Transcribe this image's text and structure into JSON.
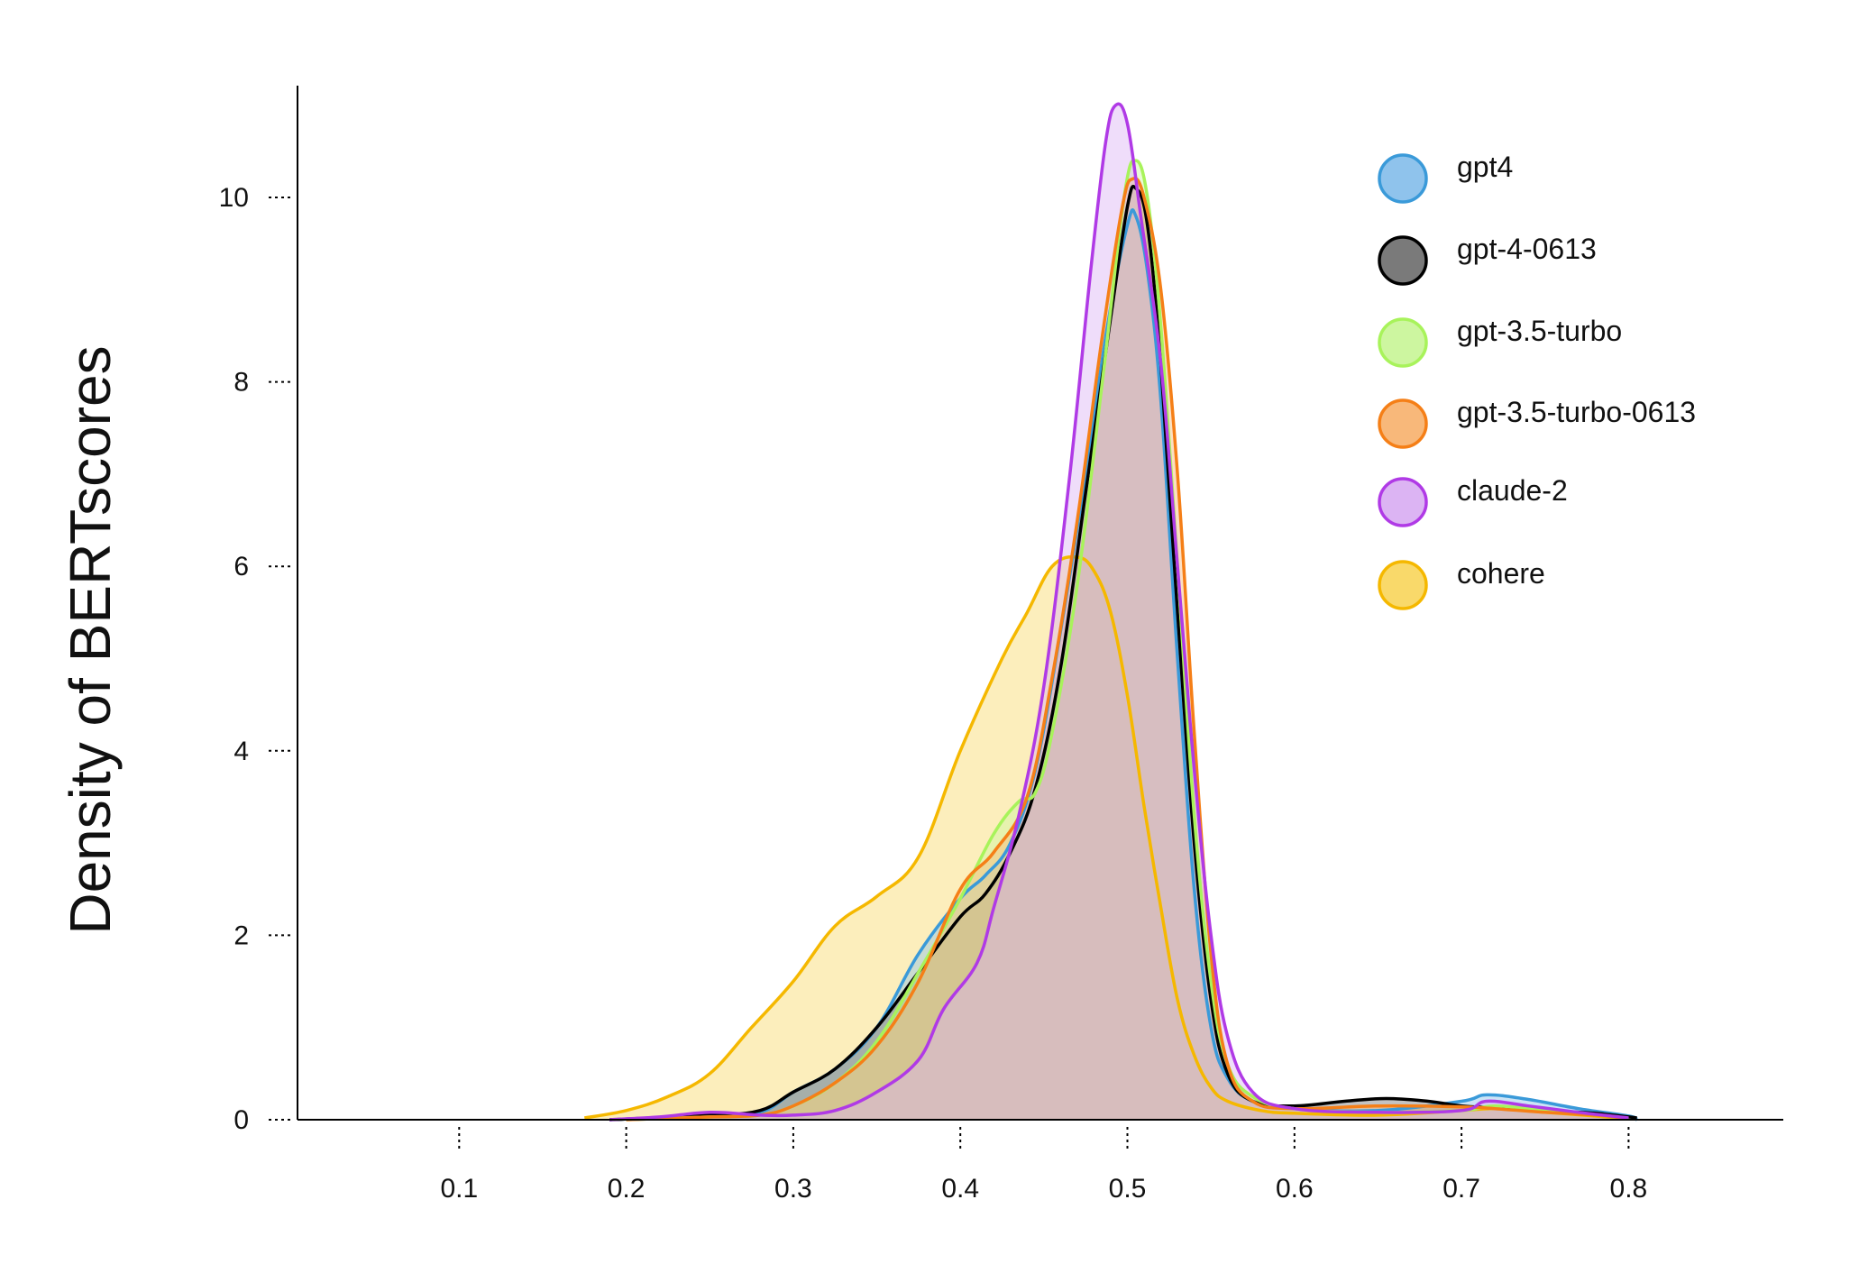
{
  "chart_data": {
    "type": "area",
    "title": "",
    "xlabel": "",
    "ylabel": "Density of BERTscores",
    "xlim": [
      0,
      0.885
    ],
    "ylim": [
      0,
      11.2
    ],
    "xticks": [
      0.1,
      0.2,
      0.3,
      0.4,
      0.5,
      0.6,
      0.7,
      0.8
    ],
    "xtick_labels": [
      "0.1",
      "0.2",
      "0.3",
      "0.4",
      "0.5",
      "0.6",
      "0.7",
      "0.8"
    ],
    "yticks": [
      0,
      2,
      4,
      6,
      8,
      10
    ],
    "ytick_labels": [
      "0",
      "2",
      "4",
      "6",
      "8",
      "10"
    ],
    "grid": false,
    "legend_position": "top-right",
    "series": [
      {
        "name": "cohere",
        "color": "#f5b800",
        "fill": "#f9d96a",
        "points": [
          [
            0.175,
            0.02
          ],
          [
            0.2,
            0.1
          ],
          [
            0.225,
            0.25
          ],
          [
            0.25,
            0.5
          ],
          [
            0.275,
            1.0
          ],
          [
            0.3,
            1.5
          ],
          [
            0.325,
            2.1
          ],
          [
            0.35,
            2.42
          ],
          [
            0.375,
            2.85
          ],
          [
            0.4,
            4.0
          ],
          [
            0.425,
            5.0
          ],
          [
            0.44,
            5.5
          ],
          [
            0.455,
            6.0
          ],
          [
            0.47,
            6.1
          ],
          [
            0.48,
            5.95
          ],
          [
            0.49,
            5.5
          ],
          [
            0.5,
            4.6
          ],
          [
            0.51,
            3.4
          ],
          [
            0.52,
            2.3
          ],
          [
            0.53,
            1.3
          ],
          [
            0.54,
            0.7
          ],
          [
            0.55,
            0.35
          ],
          [
            0.56,
            0.2
          ],
          [
            0.58,
            0.1
          ],
          [
            0.6,
            0.07
          ],
          [
            0.65,
            0.05
          ],
          [
            0.7,
            0.1
          ],
          [
            0.72,
            0.12
          ],
          [
            0.75,
            0.08
          ],
          [
            0.78,
            0.04
          ],
          [
            0.8,
            0.01
          ]
        ]
      },
      {
        "name": "gpt4",
        "color": "#3a9ad9",
        "fill": "#8fc3ec",
        "points": [
          [
            0.19,
            0.0
          ],
          [
            0.25,
            0.05
          ],
          [
            0.28,
            0.08
          ],
          [
            0.3,
            0.3
          ],
          [
            0.325,
            0.55
          ],
          [
            0.35,
            1.0
          ],
          [
            0.375,
            1.8
          ],
          [
            0.4,
            2.4
          ],
          [
            0.415,
            2.65
          ],
          [
            0.43,
            3.0
          ],
          [
            0.445,
            3.8
          ],
          [
            0.46,
            5.3
          ],
          [
            0.475,
            7.0
          ],
          [
            0.488,
            8.6
          ],
          [
            0.5,
            9.7
          ],
          [
            0.505,
            9.8
          ],
          [
            0.512,
            9.2
          ],
          [
            0.52,
            7.8
          ],
          [
            0.53,
            5.0
          ],
          [
            0.54,
            2.5
          ],
          [
            0.55,
            1.0
          ],
          [
            0.56,
            0.45
          ],
          [
            0.575,
            0.2
          ],
          [
            0.6,
            0.12
          ],
          [
            0.65,
            0.1
          ],
          [
            0.7,
            0.2
          ],
          [
            0.715,
            0.27
          ],
          [
            0.74,
            0.22
          ],
          [
            0.77,
            0.12
          ],
          [
            0.8,
            0.04
          ],
          [
            0.805,
            0.0
          ]
        ]
      },
      {
        "name": "gpt-4-0613",
        "color": "#000000",
        "fill": "#7a7a7a",
        "points": [
          [
            0.19,
            0.0
          ],
          [
            0.25,
            0.05
          ],
          [
            0.28,
            0.1
          ],
          [
            0.3,
            0.3
          ],
          [
            0.325,
            0.55
          ],
          [
            0.35,
            1.0
          ],
          [
            0.375,
            1.6
          ],
          [
            0.4,
            2.2
          ],
          [
            0.415,
            2.45
          ],
          [
            0.43,
            2.9
          ],
          [
            0.445,
            3.6
          ],
          [
            0.46,
            4.9
          ],
          [
            0.475,
            6.8
          ],
          [
            0.49,
            8.7
          ],
          [
            0.5,
            9.9
          ],
          [
            0.505,
            10.1
          ],
          [
            0.512,
            9.7
          ],
          [
            0.52,
            8.2
          ],
          [
            0.53,
            5.5
          ],
          [
            0.54,
            3.0
          ],
          [
            0.55,
            1.3
          ],
          [
            0.56,
            0.5
          ],
          [
            0.575,
            0.2
          ],
          [
            0.6,
            0.15
          ],
          [
            0.63,
            0.2
          ],
          [
            0.655,
            0.23
          ],
          [
            0.68,
            0.2
          ],
          [
            0.7,
            0.15
          ],
          [
            0.72,
            0.13
          ],
          [
            0.75,
            0.1
          ],
          [
            0.78,
            0.07
          ],
          [
            0.805,
            0.02
          ]
        ]
      },
      {
        "name": "gpt-3.5-turbo",
        "color": "#a8f35b",
        "fill": "#cdf6a0",
        "points": [
          [
            0.2,
            0.0
          ],
          [
            0.25,
            0.03
          ],
          [
            0.28,
            0.05
          ],
          [
            0.3,
            0.15
          ],
          [
            0.325,
            0.4
          ],
          [
            0.35,
            0.85
          ],
          [
            0.375,
            1.6
          ],
          [
            0.4,
            2.4
          ],
          [
            0.42,
            3.1
          ],
          [
            0.435,
            3.45
          ],
          [
            0.445,
            3.55
          ],
          [
            0.455,
            4.2
          ],
          [
            0.47,
            5.8
          ],
          [
            0.485,
            8.0
          ],
          [
            0.498,
            10.0
          ],
          [
            0.505,
            10.4
          ],
          [
            0.512,
            10.0
          ],
          [
            0.52,
            8.6
          ],
          [
            0.53,
            6.0
          ],
          [
            0.54,
            3.3
          ],
          [
            0.55,
            1.5
          ],
          [
            0.56,
            0.6
          ],
          [
            0.575,
            0.25
          ],
          [
            0.6,
            0.12
          ],
          [
            0.65,
            0.08
          ],
          [
            0.7,
            0.1
          ],
          [
            0.72,
            0.15
          ],
          [
            0.75,
            0.1
          ],
          [
            0.78,
            0.05
          ],
          [
            0.8,
            0.01
          ]
        ]
      },
      {
        "name": "gpt-3.5-turbo-0613",
        "color": "#f57f17",
        "fill": "#f8b87a",
        "points": [
          [
            0.2,
            0.0
          ],
          [
            0.25,
            0.03
          ],
          [
            0.28,
            0.05
          ],
          [
            0.3,
            0.15
          ],
          [
            0.325,
            0.4
          ],
          [
            0.35,
            0.8
          ],
          [
            0.375,
            1.5
          ],
          [
            0.4,
            2.5
          ],
          [
            0.42,
            2.9
          ],
          [
            0.44,
            3.5
          ],
          [
            0.455,
            4.8
          ],
          [
            0.47,
            6.5
          ],
          [
            0.485,
            8.5
          ],
          [
            0.497,
            9.9
          ],
          [
            0.503,
            10.2
          ],
          [
            0.51,
            10.0
          ],
          [
            0.52,
            9.0
          ],
          [
            0.53,
            7.0
          ],
          [
            0.54,
            4.2
          ],
          [
            0.55,
            1.8
          ],
          [
            0.56,
            0.6
          ],
          [
            0.575,
            0.2
          ],
          [
            0.6,
            0.12
          ],
          [
            0.65,
            0.15
          ],
          [
            0.7,
            0.14
          ],
          [
            0.72,
            0.12
          ],
          [
            0.75,
            0.08
          ],
          [
            0.78,
            0.05
          ],
          [
            0.8,
            0.01
          ]
        ]
      },
      {
        "name": "claude-2",
        "color": "#b03ae6",
        "fill": "#dcb4f3",
        "points": [
          [
            0.19,
            0.0
          ],
          [
            0.22,
            0.03
          ],
          [
            0.25,
            0.08
          ],
          [
            0.28,
            0.05
          ],
          [
            0.3,
            0.05
          ],
          [
            0.325,
            0.1
          ],
          [
            0.35,
            0.3
          ],
          [
            0.375,
            0.65
          ],
          [
            0.39,
            1.2
          ],
          [
            0.41,
            1.7
          ],
          [
            0.42,
            2.3
          ],
          [
            0.435,
            3.3
          ],
          [
            0.45,
            4.7
          ],
          [
            0.465,
            6.9
          ],
          [
            0.478,
            9.2
          ],
          [
            0.487,
            10.6
          ],
          [
            0.493,
            11.0
          ],
          [
            0.5,
            10.8
          ],
          [
            0.508,
            9.8
          ],
          [
            0.52,
            8.2
          ],
          [
            0.53,
            6.0
          ],
          [
            0.54,
            3.8
          ],
          [
            0.55,
            2.0
          ],
          [
            0.56,
            0.9
          ],
          [
            0.575,
            0.3
          ],
          [
            0.6,
            0.12
          ],
          [
            0.65,
            0.08
          ],
          [
            0.7,
            0.1
          ],
          [
            0.715,
            0.2
          ],
          [
            0.74,
            0.15
          ],
          [
            0.77,
            0.08
          ],
          [
            0.8,
            0.02
          ]
        ]
      }
    ]
  }
}
